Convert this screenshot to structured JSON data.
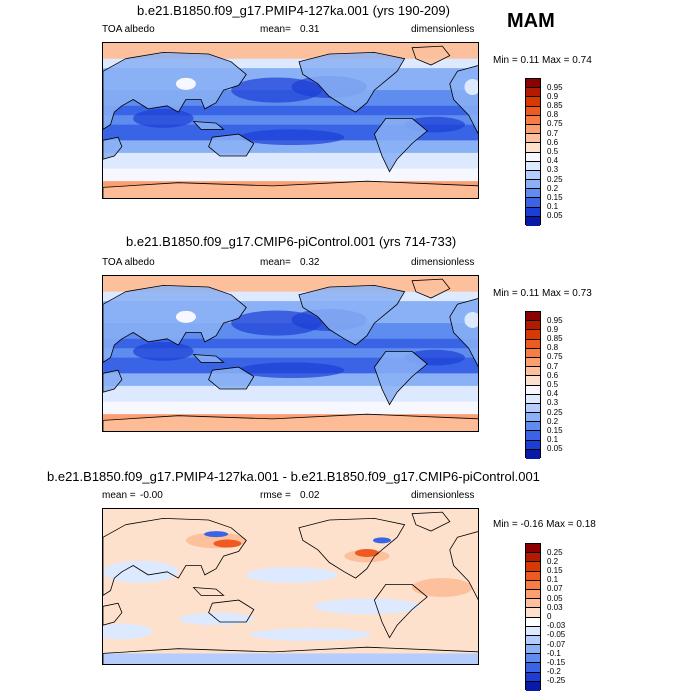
{
  "season": "MAM",
  "panels": [
    {
      "title": "b.e21.B1850.f09_g17.PMIP4-127ka.001 (yrs 190-209)",
      "left_label": "TOA albedo",
      "stat1_label": "mean=",
      "stat1_value": "0.31",
      "stat2_label": "",
      "stat2_value": "",
      "units": "dimensionless",
      "min_max": "Min =   0.11 Max =   0.74",
      "colorbar": {
        "labels": [
          "0.95",
          "0.9",
          "0.85",
          "0.8",
          "0.75",
          "0.7",
          "0.6",
          "0.5",
          "0.4",
          "0.3",
          "0.25",
          "0.2",
          "0.15",
          "0.1",
          "0.05"
        ],
        "colors": [
          "#8b0000",
          "#b31a00",
          "#d93800",
          "#ee5a20",
          "#f77c46",
          "#fb9e70",
          "#fdc09c",
          "#fde1cd",
          "#f7f7ff",
          "#dde9ff",
          "#b5cdfc",
          "#8ab0f5",
          "#5e8cef",
          "#3a64e6",
          "#1b3fd6",
          "#0a1aa8"
        ]
      },
      "field": "albedo"
    },
    {
      "title": "b.e21.B1850.f09_g17.CMIP6-piControl.001 (yrs 714-733)",
      "left_label": "TOA albedo",
      "stat1_label": "mean=",
      "stat1_value": "0.32",
      "stat2_label": "",
      "stat2_value": "",
      "units": "dimensionless",
      "min_max": "Min =   0.11 Max =   0.73",
      "colorbar": {
        "labels": [
          "0.95",
          "0.9",
          "0.85",
          "0.8",
          "0.75",
          "0.7",
          "0.6",
          "0.5",
          "0.4",
          "0.3",
          "0.25",
          "0.2",
          "0.15",
          "0.1",
          "0.05"
        ],
        "colors": [
          "#8b0000",
          "#b31a00",
          "#d93800",
          "#ee5a20",
          "#f77c46",
          "#fb9e70",
          "#fdc09c",
          "#fde1cd",
          "#f7f7ff",
          "#dde9ff",
          "#b5cdfc",
          "#8ab0f5",
          "#5e8cef",
          "#3a64e6",
          "#1b3fd6",
          "#0a1aa8"
        ]
      },
      "field": "albedo"
    },
    {
      "title": "b.e21.B1850.f09_g17.PMIP4-127ka.001 - b.e21.B1850.f09_g17.CMIP6-piControl.001",
      "left_label": "mean =",
      "stat1_label": "",
      "stat1_value": "-0.00",
      "stat2_label": "rmse =",
      "stat2_value": "0.02",
      "units": "dimensionless",
      "min_max": "Min =  -0.16 Max =   0.18",
      "colorbar": {
        "labels": [
          "0.25",
          "0.2",
          "0.15",
          "0.1",
          "0.07",
          "0.05",
          "0.03",
          "0",
          "-0.03",
          "-0.05",
          "-0.07",
          "-0.1",
          "-0.15",
          "-0.2",
          "-0.25"
        ],
        "colors": [
          "#8b0000",
          "#b31a00",
          "#d93800",
          "#ee5a20",
          "#f77c46",
          "#fb9e70",
          "#fdc09c",
          "#fde1cd",
          "#ffffff",
          "#dde9ff",
          "#b5cdfc",
          "#8ab0f5",
          "#5e8cef",
          "#3a64e6",
          "#1b3fd6",
          "#0a1aa8"
        ]
      },
      "field": "difference"
    }
  ],
  "chart_data": [
    {
      "type": "heatmap",
      "title": "b.e21.B1850.f09_g17.PMIP4-127ka.001 (yrs 190-209)",
      "variable": "TOA albedo",
      "units": "dimensionless",
      "season": "MAM",
      "mean": 0.31,
      "min": 0.11,
      "max": 0.74,
      "levels": [
        0.05,
        0.1,
        0.15,
        0.2,
        0.25,
        0.3,
        0.4,
        0.5,
        0.6,
        0.7,
        0.75,
        0.8,
        0.85,
        0.9,
        0.95
      ]
    },
    {
      "type": "heatmap",
      "title": "b.e21.B1850.f09_g17.CMIP6-piControl.001 (yrs 714-733)",
      "variable": "TOA albedo",
      "units": "dimensionless",
      "season": "MAM",
      "mean": 0.32,
      "min": 0.11,
      "max": 0.73,
      "levels": [
        0.05,
        0.1,
        0.15,
        0.2,
        0.25,
        0.3,
        0.4,
        0.5,
        0.6,
        0.7,
        0.75,
        0.8,
        0.85,
        0.9,
        0.95
      ]
    },
    {
      "type": "heatmap",
      "title": "b.e21.B1850.f09_g17.PMIP4-127ka.001 - b.e21.B1850.f09_g17.CMIP6-piControl.001",
      "units": "dimensionless",
      "mean": -0.0,
      "rmse": 0.02,
      "min": -0.16,
      "max": 0.18,
      "levels": [
        -0.25,
        -0.2,
        -0.15,
        -0.1,
        -0.07,
        -0.05,
        -0.03,
        0,
        0.03,
        0.05,
        0.07,
        0.1,
        0.15,
        0.2,
        0.25
      ]
    }
  ]
}
